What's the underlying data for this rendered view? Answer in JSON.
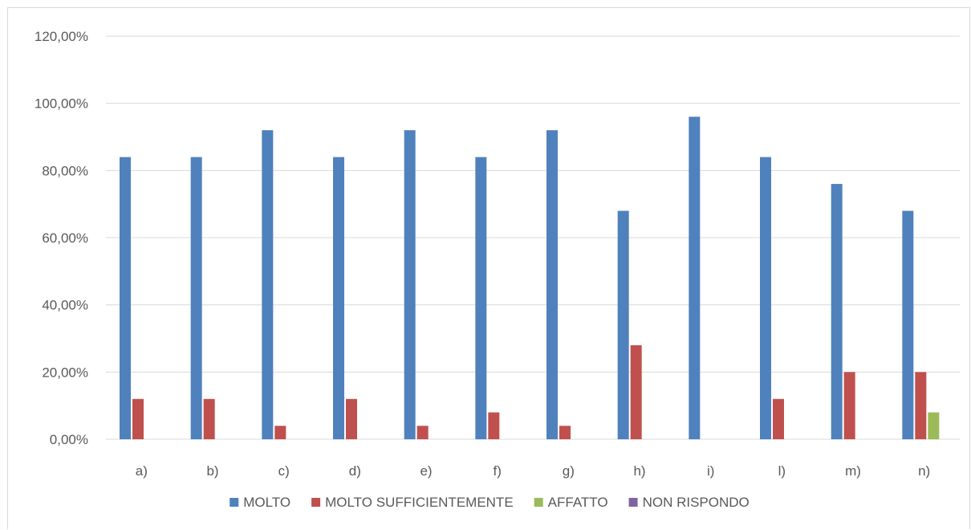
{
  "chart_data": {
    "type": "bar",
    "title": "",
    "xlabel": "",
    "ylabel": "",
    "categories": [
      "a)",
      "b)",
      "c)",
      "d)",
      "e)",
      "f)",
      "g)",
      "h)",
      "i)",
      "l)",
      "m)",
      "n)"
    ],
    "series": [
      {
        "name": "MOLTO",
        "color": "#4f81bd",
        "values": [
          84,
          84,
          92,
          84,
          92,
          84,
          92,
          68,
          96,
          84,
          76,
          68
        ]
      },
      {
        "name": "MOLTO SUFFICIENTEMENTE",
        "color": "#c0504d",
        "values": [
          12,
          12,
          4,
          12,
          4,
          8,
          4,
          28,
          0,
          12,
          20,
          20
        ]
      },
      {
        "name": "AFFATTO",
        "color": "#9bbb59",
        "values": [
          0,
          0,
          0,
          0,
          0,
          0,
          0,
          0,
          0,
          0,
          0,
          8
        ]
      },
      {
        "name": "NON RISPONDO",
        "color": "#8064a2",
        "values": [
          0,
          0,
          0,
          0,
          0,
          0,
          0,
          0,
          0,
          0,
          0,
          0
        ]
      }
    ],
    "ylim": [
      0,
      120
    ],
    "yticks": [
      0,
      20,
      40,
      60,
      80,
      100,
      120
    ],
    "ytick_labels": [
      "0,00%",
      "20,00%",
      "40,00%",
      "60,00%",
      "80,00%",
      "100,00%",
      "120,00%"
    ],
    "grid": true,
    "legend_position": "bottom"
  }
}
